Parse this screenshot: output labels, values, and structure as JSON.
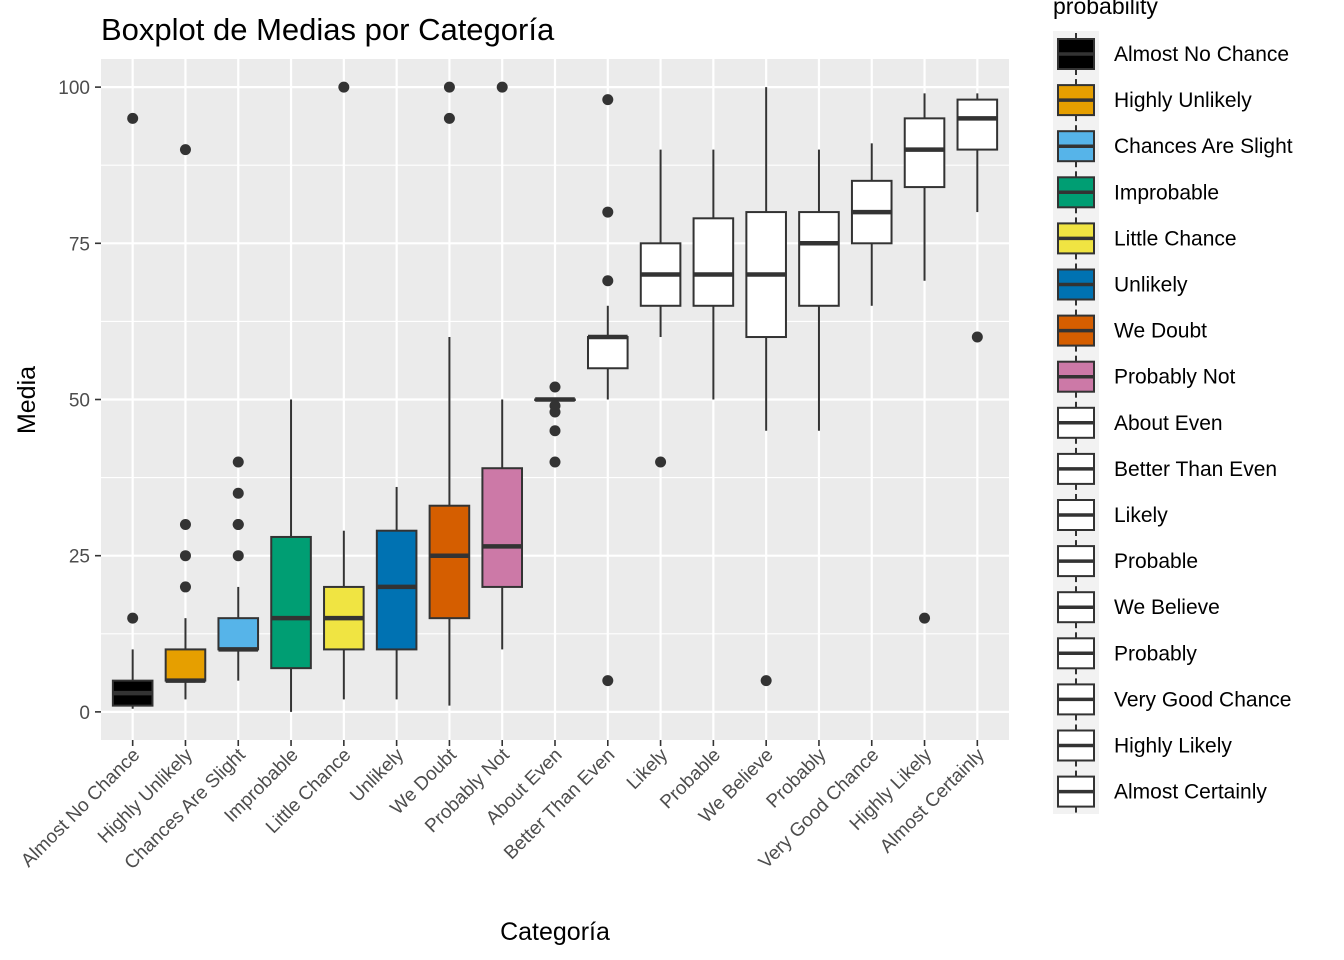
{
  "chart_data": {
    "type": "boxplot",
    "title": "Boxplot de Medias por Categoría",
    "xlabel": "Categoría",
    "ylabel": "Media",
    "ylim": [
      -4.5,
      104.5
    ],
    "yticks": [
      0,
      25,
      50,
      75,
      100
    ],
    "grid": true,
    "legend": {
      "title": "probability",
      "placement": "right"
    },
    "categories": [
      "Almost No Chance",
      "Highly Unlikely",
      "Chances Are Slight",
      "Improbable",
      "Little Chance",
      "Unlikely",
      "We Doubt",
      "Probably Not",
      "About Even",
      "Better Than Even",
      "Likely",
      "Probable",
      "We Believe",
      "Probably",
      "Very Good Chance",
      "Highly Likely",
      "Almost Certainly"
    ],
    "fill_colors": [
      "#000000",
      "#E69F00",
      "#56B4E9",
      "#009E73",
      "#F0E442",
      "#0072B2",
      "#D55E00",
      "#CC79A7",
      "#FFFFFF",
      "#FFFFFF",
      "#FFFFFF",
      "#FFFFFF",
      "#FFFFFF",
      "#FFFFFF",
      "#FFFFFF",
      "#FFFFFF",
      "#FFFFFF"
    ],
    "boxes": [
      {
        "min": 0.5,
        "q1": 1,
        "median": 3,
        "q3": 5,
        "max": 10,
        "outliers": [
          15,
          95
        ]
      },
      {
        "min": 2,
        "q1": 5,
        "median": 5,
        "q3": 10,
        "max": 15,
        "outliers": [
          20,
          25,
          30,
          90
        ]
      },
      {
        "min": 5,
        "q1": 10,
        "median": 10,
        "q3": 15,
        "max": 20,
        "outliers": [
          25,
          30,
          30,
          35,
          40
        ]
      },
      {
        "min": 0,
        "q1": 7,
        "median": 15,
        "q3": 28,
        "max": 50,
        "outliers": []
      },
      {
        "min": 2,
        "q1": 10,
        "median": 15,
        "q3": 20,
        "max": 29,
        "outliers": [
          100
        ]
      },
      {
        "min": 2,
        "q1": 10,
        "median": 20,
        "q3": 29,
        "max": 36,
        "outliers": []
      },
      {
        "min": 1,
        "q1": 15,
        "median": 25,
        "q3": 33,
        "max": 60,
        "outliers": [
          95,
          100
        ]
      },
      {
        "min": 10,
        "q1": 20,
        "median": 26.5,
        "q3": 39,
        "max": 50,
        "outliers": [
          100
        ]
      },
      {
        "min": 50,
        "q1": 50,
        "median": 50,
        "q3": 50,
        "max": 50,
        "outliers": [
          40,
          45,
          48,
          49,
          52
        ]
      },
      {
        "min": 50,
        "q1": 55,
        "median": 60,
        "q3": 60,
        "max": 65,
        "outliers": [
          5,
          69,
          80,
          98
        ]
      },
      {
        "min": 60,
        "q1": 65,
        "median": 70,
        "q3": 75,
        "max": 90,
        "outliers": [
          40
        ]
      },
      {
        "min": 50,
        "q1": 65,
        "median": 70,
        "q3": 79,
        "max": 90,
        "outliers": []
      },
      {
        "min": 45,
        "q1": 60,
        "median": 70,
        "q3": 80,
        "max": 100,
        "outliers": [
          5
        ]
      },
      {
        "min": 45,
        "q1": 65,
        "median": 75,
        "q3": 80,
        "max": 90,
        "outliers": []
      },
      {
        "min": 65,
        "q1": 75,
        "median": 80,
        "q3": 85,
        "max": 91,
        "outliers": []
      },
      {
        "min": 69,
        "q1": 84,
        "median": 90,
        "q3": 95,
        "max": 99,
        "outliers": [
          15
        ]
      },
      {
        "min": 80,
        "q1": 90,
        "median": 95,
        "q3": 98,
        "max": 99,
        "outliers": [
          60
        ]
      }
    ]
  }
}
